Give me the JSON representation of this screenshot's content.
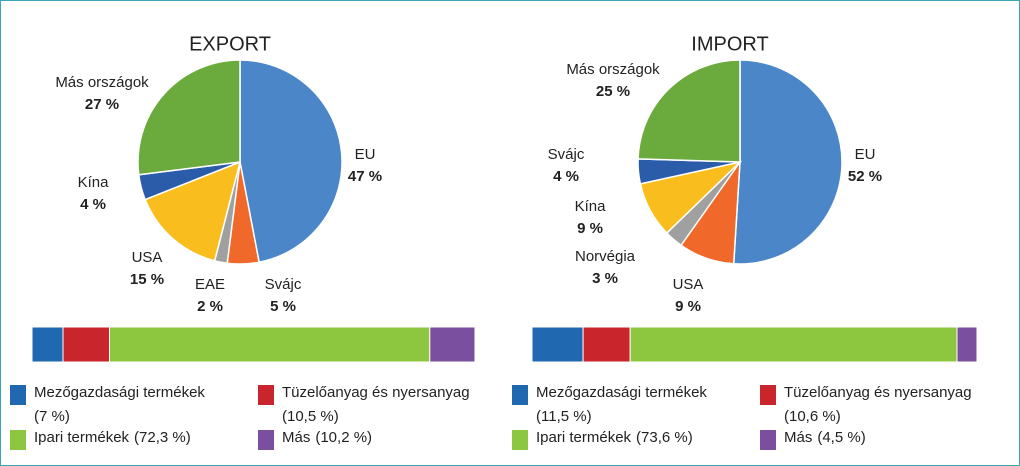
{
  "chart_data": [
    {
      "type": "pie",
      "title": "EXPORT",
      "categories": [
        "EU",
        "Svájc",
        "EAE",
        "USA",
        "Kína",
        "Más országok"
      ],
      "values": [
        47,
        5,
        2,
        15,
        4,
        27
      ],
      "value_labels": [
        "47 %",
        "5 %",
        "2 %",
        "15 %",
        "4 %",
        "27 %"
      ],
      "colors": [
        "#4a86c8",
        "#f0692a",
        "#a0a0a0",
        "#f9be1e",
        "#2a5caa",
        "#6bab3e"
      ]
    },
    {
      "type": "stacked-bar",
      "series": [
        {
          "name": "Mezőgazdasági termékek",
          "color": "#2068b0",
          "values": [
            7
          ],
          "value_labels": [
            "(7 %)"
          ]
        },
        {
          "name": "Tüzelőanyag és nyersanyag",
          "color": "#c8262c",
          "values": [
            10.5
          ],
          "value_labels": [
            "(10,5 %)"
          ]
        },
        {
          "name": "Ipari termékek",
          "color": "#8dc63f",
          "values": [
            72.3
          ],
          "value_labels": [
            "(72,3 %)"
          ]
        },
        {
          "name": "Más",
          "color": "#7b4fa0",
          "values": [
            10.2
          ],
          "value_labels": [
            "(10,2 %)"
          ]
        }
      ]
    },
    {
      "type": "pie",
      "title": "IMPORT",
      "categories": [
        "EU",
        "USA",
        "Norvégia",
        "Kína",
        "Svájc",
        "Más országok"
      ],
      "values": [
        52,
        9,
        3,
        9,
        4,
        25
      ],
      "value_labels": [
        "52 %",
        "9 %",
        "3 %",
        "9 %",
        "4 %",
        "25 %"
      ],
      "colors": [
        "#4a86c8",
        "#f0692a",
        "#a0a0a0",
        "#f9be1e",
        "#2a5caa",
        "#6bab3e"
      ]
    },
    {
      "type": "stacked-bar",
      "series": [
        {
          "name": "Mezőgazdasági termékek",
          "color": "#2068b0",
          "values": [
            11.5
          ],
          "value_labels": [
            "(11,5 %)"
          ]
        },
        {
          "name": "Tüzelőanyag és nyersanyag",
          "color": "#c8262c",
          "values": [
            10.6
          ],
          "value_labels": [
            "(10,6 %)"
          ]
        },
        {
          "name": "Ipari termékek",
          "color": "#8dc63f",
          "values": [
            73.6
          ],
          "value_labels": [
            "(73,6 %)"
          ]
        },
        {
          "name": "Más",
          "color": "#7b4fa0",
          "values": [
            4.5
          ],
          "value_labels": [
            "(4,5 %)"
          ]
        }
      ]
    }
  ]
}
